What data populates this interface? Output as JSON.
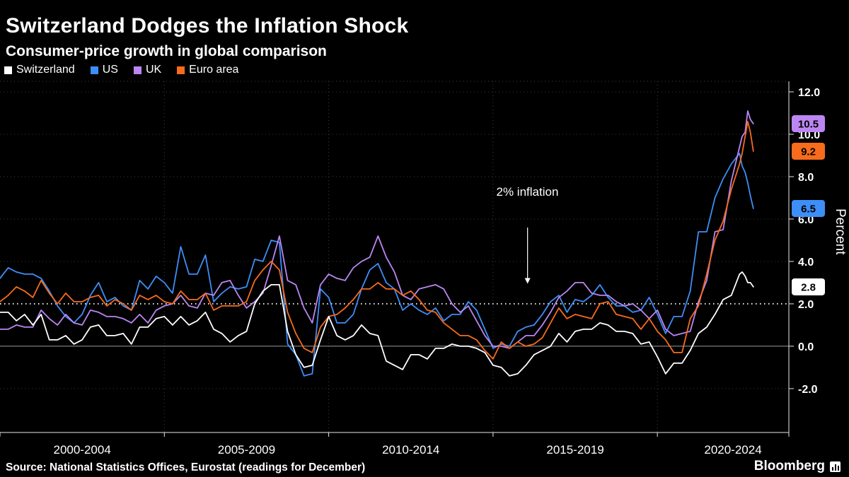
{
  "header": {
    "title": "Switzerland Dodges the Inflation Shock",
    "subtitle": "Consumer-price growth in global comparison"
  },
  "footer": {
    "source": "Source: National Statistics Offices, Eurostat (readings for December)",
    "brand": "Bloomberg"
  },
  "chart_data": {
    "type": "line",
    "title": "Switzerland Dodges the Inflation Shock",
    "subtitle": "Consumer-price growth in global comparison",
    "ylabel": "Percent",
    "grid": "dotted",
    "legend_position": "top-left",
    "x_domain": [
      2000,
      2024
    ],
    "y_domain": [
      -4.07,
      12.5
    ],
    "y_ticks": [
      -2,
      0,
      2,
      4,
      6,
      8,
      10,
      12
    ],
    "x_gridlines": [
      2005,
      2010,
      2015,
      2020
    ],
    "x_labels": [
      {
        "label": "2000-2004",
        "center": 2002.5
      },
      {
        "label": "2005-2009",
        "center": 2007.5
      },
      {
        "label": "2010-2014",
        "center": 2012.5
      },
      {
        "label": "2015-2019",
        "center": 2017.5
      },
      {
        "label": "2020-2024",
        "center": 2022.3
      }
    ],
    "zero_line": 0,
    "reference_line": {
      "value": 2
    },
    "annotation": {
      "text": "2% inflation",
      "text_x": 2015.1,
      "text_y": 7.1,
      "arrow_x": 2016.05,
      "arrow_y_from": 5.6,
      "arrow_y_to": 2.95
    },
    "x": [
      2000.0,
      2000.25,
      2000.5,
      2000.75,
      2001.0,
      2001.25,
      2001.5,
      2001.75,
      2002.0,
      2002.25,
      2002.5,
      2002.75,
      2003.0,
      2003.25,
      2003.5,
      2003.75,
      2004.0,
      2004.25,
      2004.5,
      2004.75,
      2005.0,
      2005.25,
      2005.5,
      2005.75,
      2006.0,
      2006.25,
      2006.5,
      2006.75,
      2007.0,
      2007.25,
      2007.5,
      2007.75,
      2008.0,
      2008.25,
      2008.5,
      2008.75,
      2009.0,
      2009.25,
      2009.5,
      2009.75,
      2010.0,
      2010.25,
      2010.5,
      2010.75,
      2011.0,
      2011.25,
      2011.5,
      2011.75,
      2012.0,
      2012.25,
      2012.5,
      2012.75,
      2013.0,
      2013.25,
      2013.5,
      2013.75,
      2014.0,
      2014.25,
      2014.5,
      2014.75,
      2015.0,
      2015.25,
      2015.5,
      2015.75,
      2016.0,
      2016.25,
      2016.5,
      2016.75,
      2017.0,
      2017.25,
      2017.5,
      2017.75,
      2018.0,
      2018.25,
      2018.5,
      2018.75,
      2019.0,
      2019.25,
      2019.5,
      2019.75,
      2020.0,
      2020.25,
      2020.5,
      2020.75,
      2021.0,
      2021.25,
      2021.5,
      2021.75,
      2022.0,
      2022.25,
      2022.5,
      2022.58,
      2022.67,
      2022.75,
      2022.83,
      2022.92
    ],
    "series": [
      {
        "name": "Switzerland",
        "color": "#ffffff",
        "end_label": "2.8",
        "values": [
          1.6,
          1.6,
          1.2,
          1.5,
          1.0,
          1.5,
          0.3,
          0.3,
          0.5,
          0.1,
          0.3,
          0.9,
          1.0,
          0.5,
          0.5,
          0.6,
          0.1,
          0.9,
          0.9,
          1.3,
          1.4,
          1.0,
          1.4,
          1.0,
          1.2,
          1.6,
          0.8,
          0.6,
          0.2,
          0.5,
          0.7,
          2.0,
          2.6,
          2.9,
          2.9,
          0.7,
          -0.4,
          -1.0,
          -0.9,
          0.3,
          1.4,
          0.5,
          0.3,
          0.5,
          1.0,
          0.6,
          0.5,
          -0.7,
          -0.9,
          -1.1,
          -0.4,
          -0.4,
          -0.6,
          -0.1,
          -0.1,
          0.1,
          0.0,
          0.0,
          -0.1,
          -0.3,
          -0.9,
          -1.0,
          -1.4,
          -1.3,
          -0.9,
          -0.4,
          -0.2,
          0.0,
          0.6,
          0.2,
          0.7,
          0.8,
          0.8,
          1.1,
          1.0,
          0.7,
          0.7,
          0.6,
          0.1,
          0.2,
          -0.5,
          -1.3,
          -0.8,
          -0.8,
          -0.2,
          0.6,
          0.9,
          1.5,
          2.2,
          2.4,
          3.4,
          3.5,
          3.3,
          3.0,
          3.0,
          2.8
        ]
      },
      {
        "name": "US",
        "color": "#3e8ef7",
        "end_label": "6.5",
        "values": [
          3.2,
          3.7,
          3.5,
          3.4,
          3.4,
          3.2,
          2.6,
          1.9,
          1.4,
          1.1,
          1.5,
          2.4,
          3.0,
          2.1,
          2.3,
          1.9,
          1.7,
          3.1,
          2.7,
          3.3,
          3.0,
          2.5,
          4.7,
          3.4,
          3.4,
          4.3,
          2.1,
          2.5,
          2.8,
          2.7,
          2.8,
          4.1,
          4.0,
          5.0,
          4.9,
          0.1,
          -0.4,
          -1.4,
          -1.3,
          2.7,
          2.3,
          1.1,
          1.1,
          1.5,
          2.7,
          3.6,
          3.9,
          3.0,
          2.7,
          1.7,
          2.0,
          1.7,
          1.5,
          1.8,
          1.2,
          1.5,
          1.5,
          2.1,
          1.7,
          0.8,
          -0.1,
          0.1,
          0.0,
          0.7,
          0.9,
          1.0,
          1.5,
          2.1,
          2.4,
          1.6,
          2.2,
          2.1,
          2.4,
          2.9,
          2.3,
          1.9,
          1.9,
          1.6,
          1.7,
          2.3,
          1.5,
          0.6,
          1.4,
          1.4,
          2.6,
          5.4,
          5.4,
          7.0,
          7.9,
          8.6,
          9.1,
          8.5,
          8.2,
          7.7,
          7.1,
          6.5
        ]
      },
      {
        "name": "UK",
        "color": "#bb86f2",
        "end_label": "10.5",
        "values": [
          0.8,
          0.8,
          1.0,
          0.9,
          0.9,
          1.7,
          1.3,
          1.0,
          1.5,
          1.1,
          1.0,
          1.7,
          1.6,
          1.4,
          1.4,
          1.3,
          1.1,
          1.5,
          1.1,
          1.7,
          1.9,
          2.0,
          2.4,
          1.9,
          1.8,
          2.5,
          2.4,
          3.0,
          3.1,
          2.4,
          1.8,
          2.1,
          2.5,
          3.8,
          5.2,
          3.1,
          2.9,
          1.8,
          1.1,
          2.9,
          3.4,
          3.2,
          3.1,
          3.7,
          4.0,
          4.2,
          5.2,
          4.2,
          3.5,
          2.4,
          2.2,
          2.7,
          2.8,
          2.9,
          2.7,
          2.0,
          1.6,
          1.9,
          1.2,
          0.5,
          0.0,
          0.0,
          -0.1,
          0.2,
          0.5,
          0.5,
          1.0,
          1.6,
          2.3,
          2.6,
          3.0,
          3.0,
          2.5,
          2.4,
          2.4,
          2.1,
          1.9,
          2.0,
          1.7,
          1.3,
          1.7,
          0.8,
          0.5,
          0.6,
          0.7,
          2.1,
          3.1,
          5.4,
          5.5,
          7.8,
          9.4,
          9.9,
          10.1,
          11.1,
          10.7,
          10.5
        ]
      },
      {
        "name": "Euro area",
        "color": "#f76b1c",
        "end_label": "9.2",
        "values": [
          2.1,
          2.4,
          2.8,
          2.6,
          2.3,
          3.1,
          2.5,
          2.0,
          2.5,
          2.1,
          2.1,
          2.3,
          2.4,
          1.9,
          2.2,
          2.0,
          1.7,
          2.4,
          2.2,
          2.4,
          2.1,
          2.0,
          2.6,
          2.2,
          2.2,
          2.5,
          1.7,
          1.9,
          1.9,
          1.9,
          2.1,
          3.1,
          3.6,
          4.0,
          3.6,
          1.6,
          0.6,
          -0.1,
          -0.3,
          0.9,
          1.4,
          1.5,
          1.8,
          2.2,
          2.7,
          2.7,
          3.0,
          2.7,
          2.7,
          2.4,
          2.6,
          2.2,
          1.7,
          1.6,
          1.1,
          0.8,
          0.5,
          0.5,
          0.3,
          -0.2,
          -0.6,
          0.2,
          -0.1,
          0.2,
          0.0,
          0.1,
          0.4,
          1.1,
          1.8,
          1.3,
          1.5,
          1.4,
          1.3,
          2.0,
          2.1,
          1.5,
          1.4,
          1.3,
          0.8,
          1.3,
          0.7,
          0.3,
          -0.3,
          -0.3,
          1.3,
          1.9,
          3.4,
          5.0,
          5.9,
          7.4,
          8.6,
          9.1,
          9.9,
          10.6,
          10.1,
          9.2
        ]
      }
    ]
  }
}
